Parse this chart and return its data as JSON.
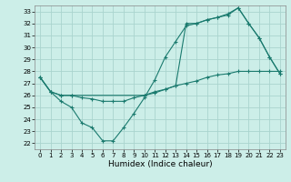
{
  "xlabel": "Humidex (Indice chaleur)",
  "background_color": "#cceee8",
  "grid_color": "#aad4ce",
  "line_color": "#1a7a6e",
  "xlim": [
    -0.5,
    23.5
  ],
  "ylim": [
    21.5,
    33.5
  ],
  "xticks": [
    0,
    1,
    2,
    3,
    4,
    5,
    6,
    7,
    8,
    9,
    10,
    11,
    12,
    13,
    14,
    15,
    16,
    17,
    18,
    19,
    20,
    21,
    22,
    23
  ],
  "yticks": [
    22,
    23,
    24,
    25,
    26,
    27,
    28,
    29,
    30,
    31,
    32,
    33
  ],
  "curve1_x": [
    0,
    1,
    2,
    3,
    4,
    5,
    6,
    7,
    8,
    9,
    10,
    11,
    12,
    13,
    14,
    15,
    16,
    17,
    18,
    19,
    20,
    21,
    22,
    23
  ],
  "curve1_y": [
    27.5,
    26.3,
    25.5,
    25.0,
    23.7,
    23.3,
    22.2,
    22.2,
    23.3,
    24.5,
    25.8,
    27.3,
    29.2,
    30.5,
    31.8,
    32.0,
    32.3,
    32.5,
    32.8,
    33.3,
    32.0,
    30.8,
    29.2,
    27.8
  ],
  "curve2_x": [
    0,
    1,
    2,
    3,
    4,
    5,
    6,
    7,
    8,
    9,
    10,
    11,
    12,
    13,
    14,
    15,
    16,
    17,
    18,
    19,
    20,
    21,
    22,
    23
  ],
  "curve2_y": [
    27.5,
    26.3,
    26.0,
    26.0,
    25.8,
    25.7,
    25.5,
    25.5,
    25.5,
    25.8,
    26.0,
    26.2,
    26.5,
    26.8,
    27.0,
    27.2,
    27.5,
    27.7,
    27.8,
    28.0,
    28.0,
    28.0,
    28.0,
    28.0
  ],
  "curve3_x": [
    0,
    1,
    2,
    3,
    10,
    11,
    12,
    13,
    14,
    15,
    16,
    17,
    18,
    19,
    20,
    21,
    22,
    23
  ],
  "curve3_y": [
    27.5,
    26.3,
    26.0,
    26.0,
    26.0,
    26.3,
    26.5,
    26.8,
    32.0,
    32.0,
    32.3,
    32.5,
    32.7,
    33.3,
    32.0,
    30.8,
    29.2,
    27.8
  ]
}
